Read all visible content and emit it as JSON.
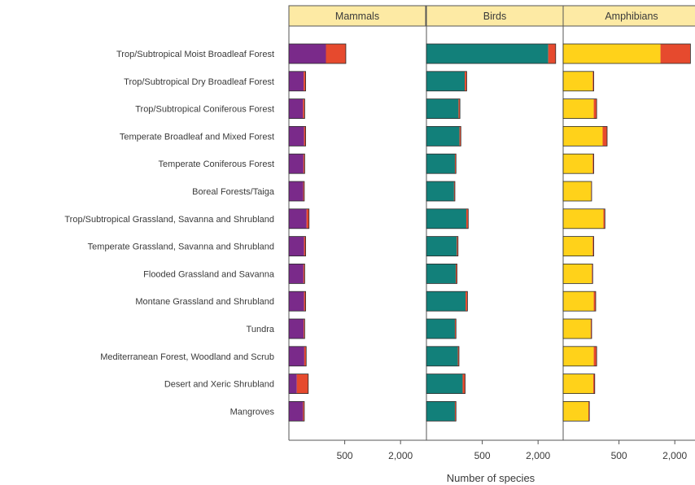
{
  "chart_data": {
    "type": "bar",
    "orientation": "horizontal",
    "stacked": true,
    "xlabel": "Number of species",
    "panels": [
      {
        "name": "Mammals",
        "colors": {
          "base": "#7a2a8a",
          "top": "#e64a2e"
        },
        "total": [
          520,
          45,
          40,
          45,
          40,
          38,
          65,
          45,
          40,
          45,
          40,
          48,
          60,
          38
        ],
        "highlight": [
          300,
          10,
          8,
          8,
          6,
          5,
          15,
          8,
          6,
          8,
          5,
          10,
          50,
          6
        ]
      },
      {
        "name": "Birds",
        "colors": {
          "base": "#12807a",
          "top": "#e64a2e"
        },
        "total": [
          2680,
          260,
          180,
          190,
          140,
          130,
          280,
          160,
          150,
          270,
          140,
          170,
          240,
          140
        ],
        "highlight": [
          300,
          25,
          15,
          15,
          10,
          8,
          25,
          12,
          12,
          25,
          10,
          12,
          30,
          10
        ]
      },
      {
        "name": "Amphibians",
        "colors": {
          "base": "#ffd21a",
          "top": "#e64a2e"
        },
        "total": [
          2600,
          150,
          180,
          310,
          150,
          130,
          280,
          150,
          140,
          170,
          130,
          180,
          160,
          110
        ],
        "highlight": [
          1080,
          10,
          30,
          60,
          10,
          5,
          20,
          10,
          8,
          20,
          8,
          30,
          15,
          8
        ]
      }
    ],
    "categories": [
      "Trop/Subtropical Moist Broadleaf Forest",
      "Trop/Subtropical Dry Broadleaf Forest",
      "Trop/Subtropical Coniferous Forest",
      "Temperate Broadleaf and Mixed Forest",
      "Temperate Coniferous Forest",
      "Boreal Forests/Taiga",
      "Trop/Subtropical Grassland, Savanna and Shrubland",
      "Temperate Grassland, Savanna and Shrubland",
      "Flooded Grassland and Savanna",
      "Montane Grassland and Shrubland",
      "Tundra",
      "Mediterranean Forest, Woodland and Scrub",
      "Desert and Xeric Shrubland",
      "Mangroves"
    ],
    "xscale": "sqrt",
    "xlim": [
      0,
      3000
    ],
    "xticks": [
      500,
      2000
    ],
    "xtick_labels": [
      "500",
      "2,000"
    ],
    "strip_color": "#fdeaa4"
  }
}
